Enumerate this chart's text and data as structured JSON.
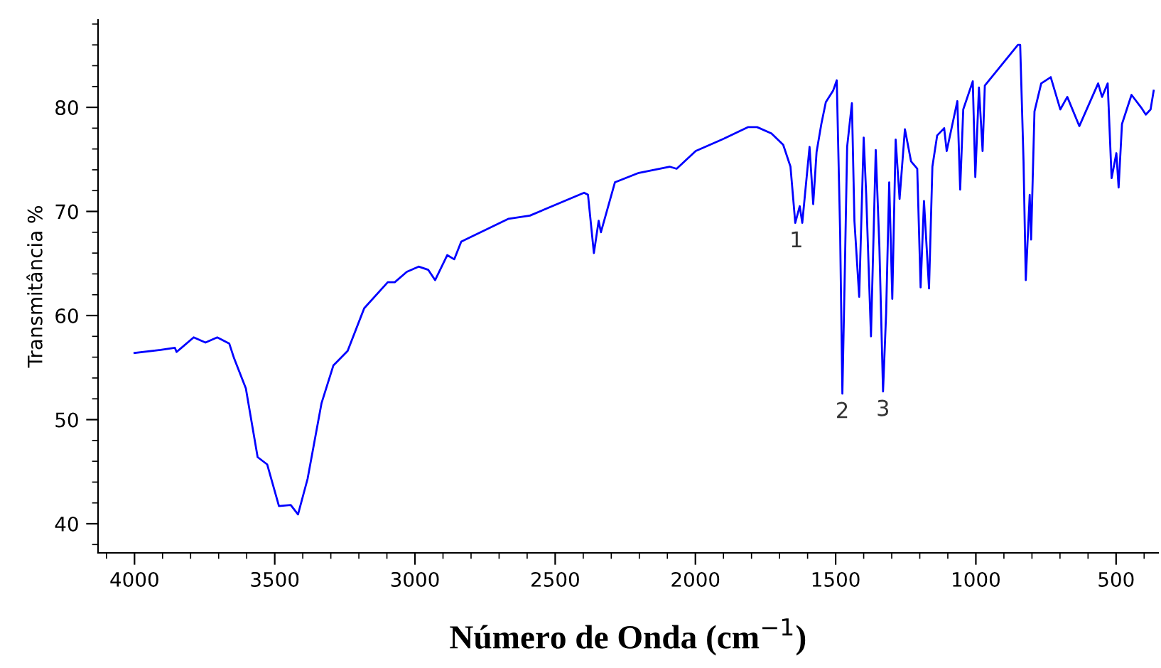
{
  "chart_data": {
    "type": "line",
    "xlabel": "Número de Onda (cm$^{−1}$)",
    "ylabel": "Transmitância %",
    "xlim": [
      4130,
      350
    ],
    "ylim": [
      37.2,
      88.4
    ],
    "xticks": [
      4000,
      3500,
      3000,
      2500,
      2000,
      1500,
      1000,
      500
    ],
    "yticks": [
      40,
      50,
      60,
      70,
      80
    ],
    "grid": false,
    "legend": false,
    "marker": "none",
    "line_style": "solid",
    "annotations": [
      {
        "text": "1",
        "x": 1640,
        "y": 68.9
      },
      {
        "text": "2",
        "x": 1476,
        "y": 52.5
      },
      {
        "text": "3",
        "x": 1331,
        "y": 52.7
      }
    ],
    "series": [
      {
        "color": "#0000ff",
        "x": [
          4000,
          3907,
          3856,
          3850,
          3789,
          3747,
          3705,
          3662,
          3645,
          3603,
          3561,
          3527,
          3485,
          3443,
          3417,
          3383,
          3333,
          3291,
          3240,
          3181,
          3097,
          3072,
          3029,
          2987,
          2953,
          2928,
          2885,
          2860,
          2835,
          2666,
          2590,
          2397,
          2383,
          2362,
          2345,
          2337,
          2287,
          2202,
          2092,
          2067,
          1999,
          1898,
          1813,
          1780,
          1729,
          1687,
          1661,
          1644,
          1628,
          1619,
          1593,
          1580,
          1568,
          1551,
          1535,
          1509,
          1496,
          1484,
          1476,
          1467,
          1459,
          1442,
          1433,
          1416,
          1400,
          1391,
          1374,
          1357,
          1344,
          1331,
          1320,
          1309,
          1298,
          1286,
          1272,
          1253,
          1231,
          1209,
          1197,
          1185,
          1167,
          1155,
          1138,
          1113,
          1104,
          1066,
          1056,
          1045,
          1011,
          1002,
          989,
          976,
          968,
          850,
          842,
          830,
          822,
          808,
          803,
          791,
          767,
          733,
          699,
          674,
          631,
          564,
          550,
          530,
          516,
          499,
          491,
          479,
          445,
          411,
          394,
          377,
          366
        ],
        "values": [
          56.4,
          56.7,
          56.9,
          56.5,
          57.9,
          57.4,
          57.9,
          57.3,
          55.9,
          53.0,
          46.4,
          45.7,
          41.7,
          41.8,
          40.9,
          44.3,
          51.6,
          55.2,
          56.6,
          60.7,
          63.2,
          63.2,
          64.2,
          64.7,
          64.4,
          63.4,
          65.8,
          65.4,
          67.1,
          69.3,
          69.6,
          71.8,
          71.6,
          66.0,
          69.1,
          68.0,
          72.8,
          73.7,
          74.3,
          74.1,
          75.8,
          77.0,
          78.1,
          78.1,
          77.5,
          76.4,
          74.3,
          68.9,
          70.5,
          68.9,
          76.2,
          70.7,
          75.7,
          78.4,
          80.5,
          81.6,
          82.6,
          68.0,
          52.5,
          64.6,
          76.2,
          80.4,
          69.1,
          61.8,
          77.1,
          71.6,
          58.0,
          75.9,
          66.6,
          52.7,
          60.2,
          72.8,
          61.6,
          76.9,
          71.2,
          77.9,
          74.8,
          74.1,
          62.7,
          71.0,
          62.6,
          74.3,
          77.3,
          78.0,
          75.8,
          80.6,
          72.1,
          79.8,
          82.5,
          73.3,
          81.9,
          75.8,
          82.1,
          86.0,
          86.0,
          74.8,
          63.4,
          71.6,
          67.3,
          79.6,
          82.3,
          82.9,
          79.8,
          81.0,
          78.2,
          82.3,
          81.0,
          82.3,
          73.2,
          75.6,
          72.3,
          78.4,
          81.2,
          80.0,
          79.3,
          79.8,
          81.6
        ]
      }
    ]
  }
}
